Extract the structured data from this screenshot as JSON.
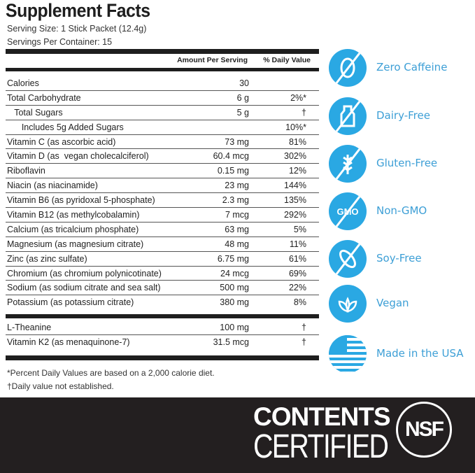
{
  "title": "Supplement Facts",
  "serving_size": "Serving Size: 1 Stick Packet (12.4g)",
  "servings_per_container": "Servings Per Container: 15",
  "header": {
    "amount": "Amount Per Serving",
    "dv": "% Daily Value"
  },
  "rows": [
    {
      "name": "Calories",
      "amount": "30",
      "dv": ""
    },
    {
      "name": "Total Carbohydrate",
      "amount": "6 g",
      "dv": "2%*"
    },
    {
      "name": "   Total Sugars",
      "amount": "5 g",
      "dv": "†"
    },
    {
      "name": "      Includes 5g Added Sugars",
      "amount": "",
      "dv": "10%*"
    },
    {
      "name": "Vitamin C (as ascorbic acid)",
      "amount": "73 mg",
      "dv": "81%"
    },
    {
      "name": "Vitamin D (as  vegan cholecalciferol)",
      "amount": "60.4 mcg",
      "dv": "302%"
    },
    {
      "name": "Riboflavin",
      "amount": "0.15 mg",
      "dv": "12%"
    },
    {
      "name": "Niacin (as niacinamide)",
      "amount": "23 mg",
      "dv": "144%"
    },
    {
      "name": "Vitamin B6 (as pyridoxal 5-phosphate)",
      "amount": "2.3 mg",
      "dv": "135%"
    },
    {
      "name": "Vitamin B12 (as methylcobalamin)",
      "amount": "7 mcg",
      "dv": "292%"
    },
    {
      "name": "Calcium (as tricalcium phosphate)",
      "amount": "63 mg",
      "dv": "5%"
    },
    {
      "name": "Magnesium (as magnesium citrate)",
      "amount": "48 mg",
      "dv": "11%"
    },
    {
      "name": "Zinc (as zinc sulfate)",
      "amount": "6.75 mg",
      "dv": "61%"
    },
    {
      "name": "Chromium (as chromium polynicotinate)",
      "amount": "24 mcg",
      "dv": "69%"
    },
    {
      "name": "Sodium (as sodium citrate and sea salt)",
      "amount": "500 mg",
      "dv": "22%"
    },
    {
      "name": "Potassium (as potassium citrate)",
      "amount": "380 mg",
      "dv": "8%"
    }
  ],
  "other_rows": [
    {
      "name": "L-Theanine",
      "amount": "100 mg",
      "dv": "†"
    },
    {
      "name": "Vitamin K2 (as menaquinone-7)",
      "amount": "31.5 mcg",
      "dv": "†"
    }
  ],
  "footnotes": [
    "*Percent Daily Values are based on a 2,000 calorie diet.",
    "†Daily value not established."
  ],
  "badges": [
    {
      "label": "Zero Caffeine",
      "icon": "no-coffee-bean-icon"
    },
    {
      "label": "Dairy-Free",
      "icon": "no-milk-bottle-icon"
    },
    {
      "label": "Gluten-Free",
      "icon": "no-wheat-icon"
    },
    {
      "label": "Non-GMO",
      "icon": "gmo-crossed-icon"
    },
    {
      "label": "Soy-Free",
      "icon": "no-soy-icon"
    },
    {
      "label": "Vegan",
      "icon": "leaf-icon"
    },
    {
      "label": "Made in the USA",
      "icon": "us-flag-icon"
    }
  ],
  "certification": {
    "line1": "CONTENTS",
    "line2": "CERTIFIED",
    "seal": "NSF"
  },
  "colors": {
    "accent": "#2aa8e3",
    "label": "#3d9fd6",
    "band": "#231f20"
  }
}
